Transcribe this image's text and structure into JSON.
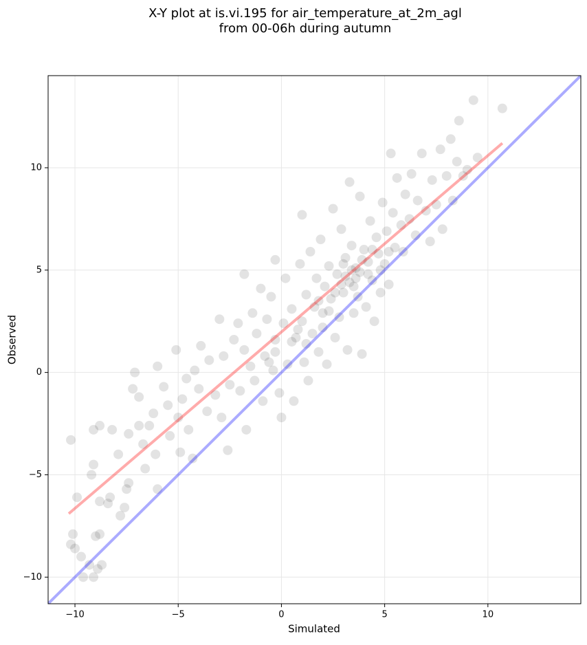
{
  "chart_data": {
    "type": "scatter",
    "title": "X-Y plot at is.vi.195 for air_temperature_at_2m_agl",
    "subtitle": "from 00-06h during autumn",
    "xlabel": "Simulated",
    "ylabel": "Observed",
    "xlim": [
      -11.3,
      14.5
    ],
    "ylim": [
      -11.3,
      14.5
    ],
    "xticks": [
      {
        "value": -10,
        "label": "−10"
      },
      {
        "value": -5,
        "label": "−5"
      },
      0,
      5,
      10
    ],
    "yticks": [
      {
        "value": -10,
        "label": "−10"
      },
      {
        "value": -5,
        "label": "−5"
      },
      0,
      5,
      10
    ],
    "grid": true,
    "color": "#000000",
    "x": [
      -10.2,
      -10.1,
      -10,
      -10.2,
      -9.9,
      -9.7,
      -9.6,
      -9.3,
      -9.1,
      -9,
      -8.9,
      -8.7,
      -8.8,
      -9.1,
      -8.8,
      -9.1,
      -9.2,
      -8.8,
      -8.4,
      -8.3,
      -8.2,
      -7.9,
      -7.8,
      -7.6,
      -7.5,
      -7.4,
      -7.4,
      -7.2,
      -7.1,
      -6.9,
      -6.9,
      -6.7,
      -6.6,
      -6.4,
      -6.2,
      -6.1,
      -6,
      -6,
      -5.7,
      -5.5,
      -5.4,
      -5.1,
      -5,
      -4.9,
      -4.8,
      -4.6,
      -4.5,
      -4.3,
      -4.2,
      -4,
      -3.9,
      -3.6,
      -3.5,
      -3.2,
      -3,
      -2.9,
      -2.8,
      -2.6,
      -2.5,
      -2.3,
      -2.1,
      -2,
      -1.8,
      -1.8,
      -1.7,
      -1.5,
      -1.4,
      -1.3,
      -1.2,
      -1,
      -0.9,
      -0.8,
      -0.7,
      -0.5,
      -0.4,
      -0.3,
      -0.3,
      -0.1,
      0,
      0.1,
      0.2,
      0.3,
      0.5,
      0.6,
      0.7,
      0.9,
      1,
      1,
      1.1,
      1.2,
      1.3,
      1.4,
      1.5,
      1.6,
      1.7,
      1.8,
      1.9,
      2,
      2.1,
      2.2,
      2.3,
      2.4,
      2.5,
      2.6,
      2.7,
      2.8,
      2.9,
      3,
      3.1,
      3.2,
      3.3,
      3.3,
      3.4,
      3.5,
      3.6,
      3.7,
      3.8,
      3.8,
      3.9,
      4,
      4.1,
      4.2,
      4.3,
      4.4,
      4.5,
      4.6,
      4.7,
      4.8,
      4.9,
      5,
      5.1,
      5.2,
      5.3,
      5.4,
      5.5,
      5.6,
      5.8,
      5.9,
      6,
      6.2,
      6.3,
      6.5,
      6.6,
      6.8,
      7,
      7.2,
      7.3,
      7.5,
      7.7,
      7.8,
      8,
      8.2,
      8.3,
      8.5,
      8.6,
      8.8,
      9,
      9.3,
      9.5,
      10.7,
      2.9,
      3.1,
      3.4,
      3.6,
      3.9,
      4.2,
      3.5,
      2.6,
      0.5,
      0.8,
      -0.3,
      1.8,
      2.3,
      4.4,
      3,
      2,
      1.2,
      -0.6,
      4.8,
      5.2
    ],
    "y": [
      -8.4,
      -7.9,
      -8.6,
      -3.3,
      -6.1,
      -9,
      -10,
      -9.4,
      -10,
      -8,
      -9.6,
      -9.4,
      -7.9,
      -2.8,
      -2.6,
      -4.5,
      -5,
      -6.3,
      -6.4,
      -6.1,
      -2.8,
      -4,
      -7,
      -6.6,
      -5.7,
      -5.4,
      -3,
      -0.8,
      0,
      -1.2,
      -2.6,
      -3.5,
      -4.7,
      -2.6,
      -2,
      -4,
      -5.7,
      0.3,
      -0.7,
      -1.6,
      -3.1,
      1.1,
      -2.2,
      -3.9,
      -1.3,
      -0.3,
      -2.8,
      -4.2,
      0.1,
      -0.8,
      1.3,
      -1.9,
      0.6,
      -1.1,
      2.6,
      -2.2,
      0.8,
      -3.8,
      -0.6,
      1.6,
      2.4,
      -0.9,
      4.8,
      1.1,
      -2.8,
      0.3,
      2.9,
      -0.4,
      1.9,
      4.1,
      -1.4,
      0.8,
      2.6,
      3.7,
      0.1,
      5.5,
      1.6,
      -1,
      -2.2,
      2.4,
      4.6,
      0.4,
      3.1,
      -1.4,
      1.7,
      5.3,
      2.5,
      7.7,
      0.5,
      3.8,
      -0.4,
      5.9,
      1.9,
      3.2,
      4.6,
      1,
      6.5,
      2.9,
      4.2,
      0.4,
      5.2,
      3.6,
      8,
      1.7,
      4.8,
      2.7,
      7,
      3.9,
      5.6,
      1.1,
      9.3,
      4.4,
      6.2,
      2.9,
      5.1,
      3.7,
      8.6,
      4.9,
      0.9,
      6,
      3.2,
      5.4,
      7.4,
      4.5,
      2.5,
      6.6,
      5.8,
      3.9,
      8.3,
      5.3,
      6.9,
      4.3,
      10.7,
      7.8,
      6.1,
      9.5,
      7.2,
      5.9,
      8.7,
      7.5,
      9.7,
      6.7,
      8.4,
      10.7,
      7.9,
      6.4,
      9.4,
      8.2,
      10.9,
      7,
      9.6,
      11.4,
      8.4,
      10.3,
      12.3,
      9.6,
      9.9,
      13.3,
      10.5,
      12.9,
      4.3,
      4.7,
      5,
      4.6,
      5.5,
      4.8,
      4.2,
      3.9,
      1.5,
      2.1,
      1,
      3.5,
      3,
      6,
      5.3,
      2.2,
      1.4,
      0.5,
      5,
      5.9
    ],
    "reference_line": {
      "color": "#0000ff",
      "x": [
        -11.3,
        14.5
      ],
      "y": [
        -11.3,
        14.5
      ]
    },
    "fit_line": {
      "color": "#ff0000",
      "x": [
        -10.3,
        10.7
      ],
      "y": [
        -6.9,
        11.2
      ]
    }
  }
}
